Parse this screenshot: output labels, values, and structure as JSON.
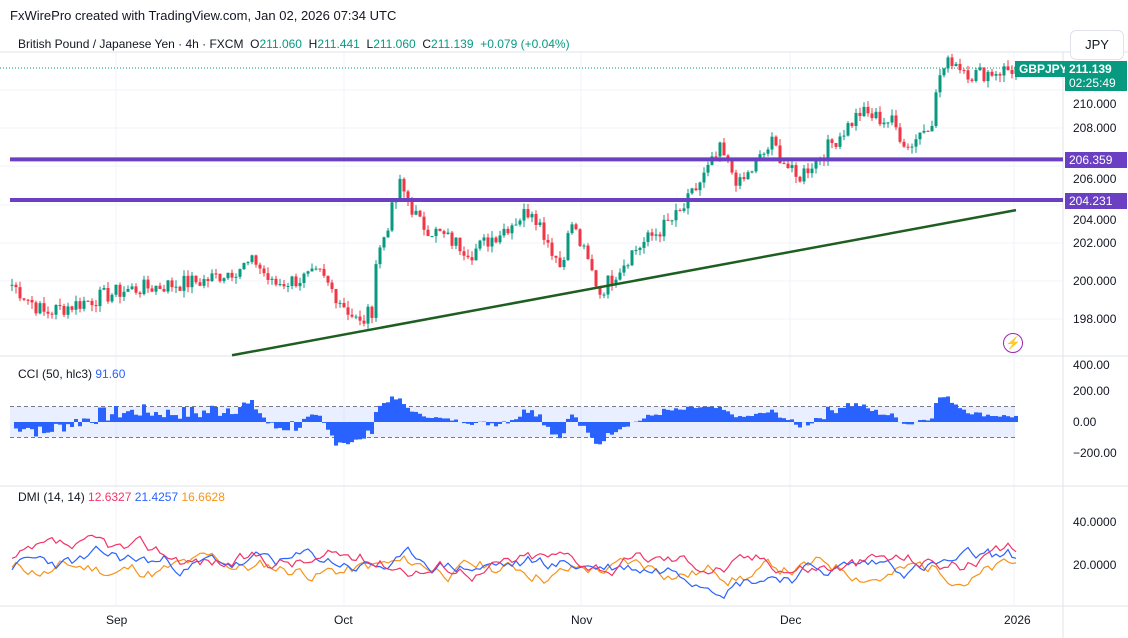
{
  "header": "FxWirePro created with TradingView.com, Jan 02, 2026 07:34 UTC",
  "legend": {
    "name": "British Pound / Japanese Yen · 4h · FXCM",
    "o_label": "O",
    "o": "211.060",
    "h_label": "H",
    "h": "211.441",
    "l_label": "L",
    "l": "211.060",
    "c_label": "C",
    "c": "211.139",
    "chg": "+0.079 (+0.04%)"
  },
  "currency": "JPY",
  "symbol_tag": "GBPJPY",
  "last_price": "211.139",
  "countdown": "02:25:49",
  "levels": [
    {
      "label": "206.359",
      "value": 206.359
    },
    {
      "label": "204.231",
      "value": 204.231
    }
  ],
  "colors": {
    "up": "#089981",
    "down": "#f23645",
    "level": "#6a3fc1",
    "trend": "#1e5e20",
    "cci": "#2962ff",
    "plus_di": "#2962ff",
    "minus_di": "#f7931a",
    "adx": "#f23468"
  },
  "cci": {
    "label": "CCI (50, hlc3)",
    "value": "91.60"
  },
  "dmi": {
    "label": "DMI (14, 14)",
    "v1": "12.6327",
    "v2": "21.4257",
    "v3": "16.6628"
  },
  "chart_data": {
    "type": "candlestick",
    "title": "British Pound / Japanese Yen · 4h · FXCM",
    "price_keypoints": [
      [
        0,
        199.8
      ],
      [
        8,
        198.3
      ],
      [
        28,
        199.5
      ],
      [
        48,
        200
      ],
      [
        61,
        201
      ],
      [
        65,
        199.8
      ],
      [
        77,
        200.3
      ],
      [
        87,
        197.7
      ],
      [
        90,
        198.5
      ],
      [
        91,
        201
      ],
      [
        97,
        205
      ],
      [
        102,
        203
      ],
      [
        115,
        201.5
      ],
      [
        130,
        203.8
      ],
      [
        137,
        200.8
      ],
      [
        140,
        203
      ],
      [
        147,
        199.4
      ],
      [
        155,
        201.5
      ],
      [
        167,
        203.5
      ],
      [
        177,
        206.8
      ],
      [
        182,
        205
      ],
      [
        190,
        207.2
      ],
      [
        196,
        205.3
      ],
      [
        205,
        207.2
      ],
      [
        212,
        208.8
      ],
      [
        220,
        208.3
      ],
      [
        224,
        207
      ],
      [
        230,
        208.5
      ],
      [
        232,
        210.8
      ],
      [
        235,
        211.6
      ],
      [
        240,
        210.8
      ],
      [
        251,
        211.1
      ]
    ],
    "trendline": [
      [
        55,
        196.1
      ],
      [
        251,
        203.7
      ]
    ],
    "price_axis": [
      "210.000",
      "208.000",
      "206.000",
      "204.000",
      "202.000",
      "200.000",
      "198.000"
    ],
    "cci_axis": [
      "400.00",
      "200.00",
      "0.00",
      "−200.00"
    ],
    "dmi_axis": [
      "40.0000",
      "20.0000"
    ],
    "time_axis": [
      "Sep",
      "Oct",
      "Nov",
      "Dec",
      "2026"
    ]
  }
}
